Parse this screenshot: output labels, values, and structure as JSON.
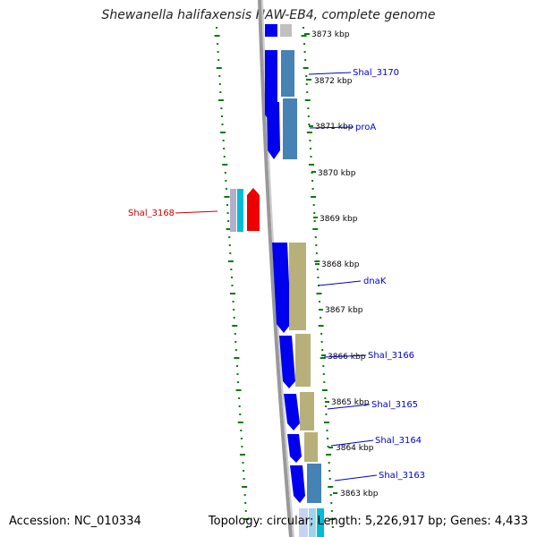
{
  "title": "Shewanella halifaxensis HAW-EB4, complete genome",
  "footer": {
    "accession": "Accession: NC_010334",
    "summary": "Topology: circular; Length: 5,226,917 bp; Genes: 4,433"
  },
  "ticks": [
    "3873 kbp",
    "3872 kbp",
    "3871 kbp",
    "3870 kbp",
    "3869 kbp",
    "3868 kbp",
    "3867 kbp",
    "3866 kbp",
    "3865 kbp",
    "3864 kbp",
    "3863 kbp"
  ],
  "gene_labels": [
    {
      "text": "Shal_3170",
      "color": "#0000cc"
    },
    {
      "text": "proA",
      "color": "#0000cc"
    },
    {
      "text": "Shal_3168",
      "color": "#cc0000"
    },
    {
      "text": "dnaK",
      "color": "#0000cc"
    },
    {
      "text": "Shal_3166",
      "color": "#0000cc"
    },
    {
      "text": "Shal_3165",
      "color": "#0000cc"
    },
    {
      "text": "Shal_3164",
      "color": "#0000cc"
    },
    {
      "text": "Shal_3163",
      "color": "#0000cc"
    }
  ],
  "colors": {
    "forward_cds": "#0000ee",
    "reverse_cds": "#ee0000",
    "feature_blue": "#4682b4",
    "feature_khaki": "#b8b07a",
    "feature_cyan": "#00bcd4",
    "gc_skew": "#0a7a0a",
    "backbone": "#888888"
  }
}
